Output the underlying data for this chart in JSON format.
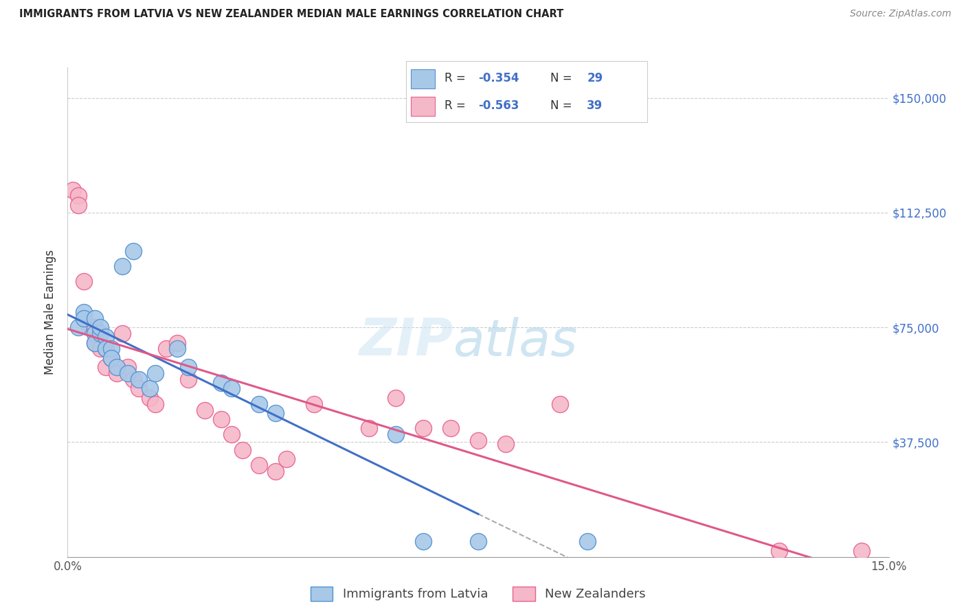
{
  "title": "IMMIGRANTS FROM LATVIA VS NEW ZEALANDER MEDIAN MALE EARNINGS CORRELATION CHART",
  "source": "Source: ZipAtlas.com",
  "ylabel": "Median Male Earnings",
  "y_ticks": [
    0,
    37500,
    75000,
    112500,
    150000
  ],
  "y_tick_labels": [
    "",
    "$37,500",
    "$75,000",
    "$112,500",
    "$150,000"
  ],
  "x_min": 0.0,
  "x_max": 0.15,
  "y_min": 0,
  "y_max": 160000,
  "legend_label_blue": "Immigrants from Latvia",
  "legend_label_pink": "New Zealanders",
  "color_blue_fill": "#a8c8e8",
  "color_pink_fill": "#f5b8c8",
  "color_blue_edge": "#5090d0",
  "color_pink_edge": "#e86090",
  "color_blue_line": "#4070c8",
  "color_pink_line": "#e05888",
  "color_blue_text": "#4070c8",
  "color_pink_text": "#e05888",
  "watermark_zip": "ZIP",
  "watermark_atlas": "atlas",
  "blue_points": [
    [
      0.002,
      75000
    ],
    [
      0.003,
      80000
    ],
    [
      0.003,
      78000
    ],
    [
      0.005,
      78000
    ],
    [
      0.005,
      73000
    ],
    [
      0.005,
      70000
    ],
    [
      0.006,
      73000
    ],
    [
      0.006,
      75000
    ],
    [
      0.007,
      72000
    ],
    [
      0.007,
      68000
    ],
    [
      0.008,
      68000
    ],
    [
      0.008,
      65000
    ],
    [
      0.009,
      62000
    ],
    [
      0.01,
      95000
    ],
    [
      0.011,
      60000
    ],
    [
      0.012,
      100000
    ],
    [
      0.013,
      58000
    ],
    [
      0.015,
      55000
    ],
    [
      0.016,
      60000
    ],
    [
      0.02,
      68000
    ],
    [
      0.022,
      62000
    ],
    [
      0.028,
      57000
    ],
    [
      0.03,
      55000
    ],
    [
      0.035,
      50000
    ],
    [
      0.038,
      47000
    ],
    [
      0.06,
      40000
    ],
    [
      0.065,
      5000
    ],
    [
      0.075,
      5000
    ],
    [
      0.095,
      5000
    ]
  ],
  "pink_points": [
    [
      0.001,
      120000
    ],
    [
      0.002,
      118000
    ],
    [
      0.002,
      115000
    ],
    [
      0.003,
      90000
    ],
    [
      0.004,
      75000
    ],
    [
      0.005,
      75000
    ],
    [
      0.005,
      70000
    ],
    [
      0.006,
      73000
    ],
    [
      0.006,
      68000
    ],
    [
      0.007,
      68000
    ],
    [
      0.007,
      62000
    ],
    [
      0.008,
      65000
    ],
    [
      0.009,
      60000
    ],
    [
      0.01,
      73000
    ],
    [
      0.011,
      62000
    ],
    [
      0.012,
      58000
    ],
    [
      0.013,
      55000
    ],
    [
      0.015,
      52000
    ],
    [
      0.016,
      50000
    ],
    [
      0.018,
      68000
    ],
    [
      0.02,
      70000
    ],
    [
      0.022,
      58000
    ],
    [
      0.025,
      48000
    ],
    [
      0.028,
      45000
    ],
    [
      0.03,
      40000
    ],
    [
      0.032,
      35000
    ],
    [
      0.035,
      30000
    ],
    [
      0.038,
      28000
    ],
    [
      0.04,
      32000
    ],
    [
      0.045,
      50000
    ],
    [
      0.055,
      42000
    ],
    [
      0.06,
      52000
    ],
    [
      0.065,
      42000
    ],
    [
      0.07,
      42000
    ],
    [
      0.075,
      38000
    ],
    [
      0.08,
      37000
    ],
    [
      0.09,
      50000
    ],
    [
      0.13,
      2000
    ],
    [
      0.145,
      2000
    ]
  ]
}
